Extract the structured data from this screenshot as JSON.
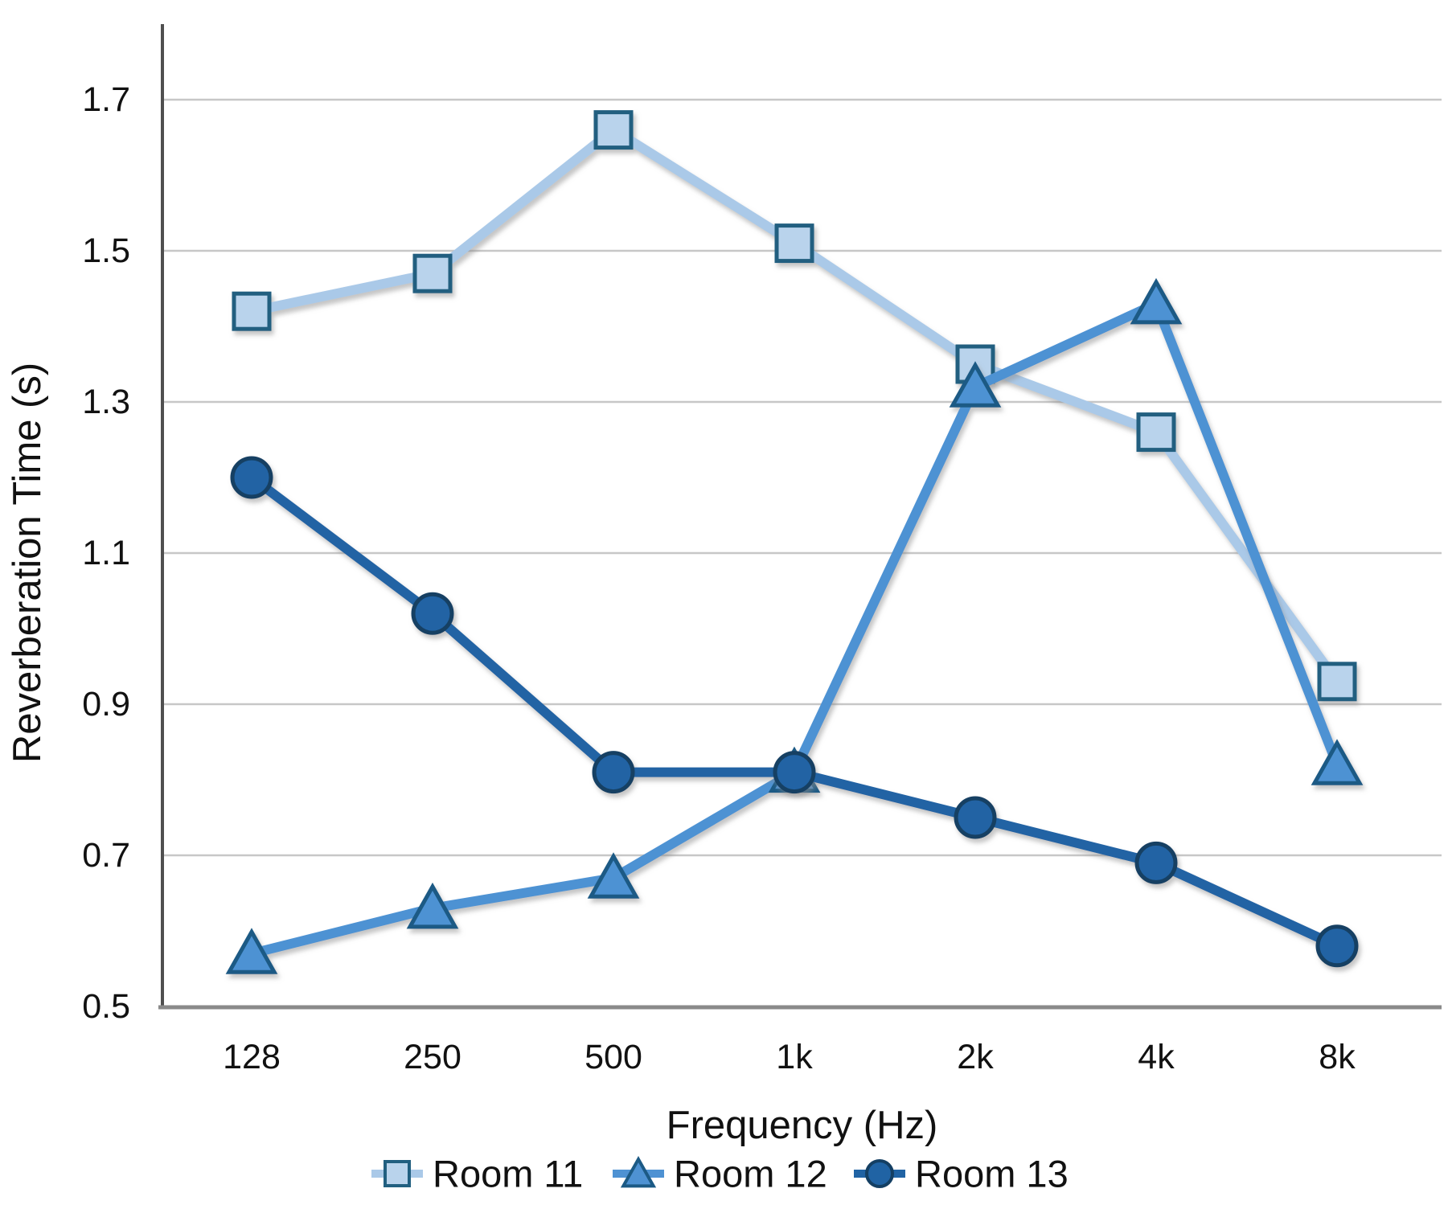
{
  "chart_data": {
    "type": "line",
    "title": "",
    "xlabel": "Frequency (Hz)",
    "ylabel": "Reverberation Time (s)",
    "categories": [
      "128",
      "250",
      "500",
      "1k",
      "2k",
      "4k",
      "8k"
    ],
    "series": [
      {
        "name": "Room 11",
        "marker": "square",
        "values": [
          1.42,
          1.47,
          1.66,
          1.51,
          1.35,
          1.26,
          0.93
        ],
        "line_color": "#aac9e8",
        "marker_fill": "#b9d3ec",
        "marker_stroke": "#215f80"
      },
      {
        "name": "Room 12",
        "marker": "triangle",
        "values": [
          0.57,
          0.63,
          0.67,
          0.81,
          1.32,
          1.43,
          0.82
        ],
        "line_color": "#4e92d3",
        "marker_fill": "#4e92d3",
        "marker_stroke": "#1c5a85"
      },
      {
        "name": "Room 13",
        "marker": "circle",
        "values": [
          1.2,
          1.02,
          0.81,
          0.81,
          0.75,
          0.69,
          0.58
        ],
        "line_color": "#2063a4",
        "marker_fill": "#2063a4",
        "marker_stroke": "#143f63"
      }
    ],
    "ylim": [
      0.5,
      1.7
    ],
    "ytick_step": 0.2,
    "yticks": [
      "0.5",
      "0.7",
      "0.9",
      "1.1",
      "1.3",
      "1.5",
      "1.7"
    ],
    "grid": true,
    "legend_position": "bottom",
    "colors": {
      "gridline": "#c7c7c7",
      "axis_left": "#4f4f4f",
      "axis_bottom": "#8a8a8a",
      "text": "#111111",
      "background": "#ffffff"
    }
  }
}
